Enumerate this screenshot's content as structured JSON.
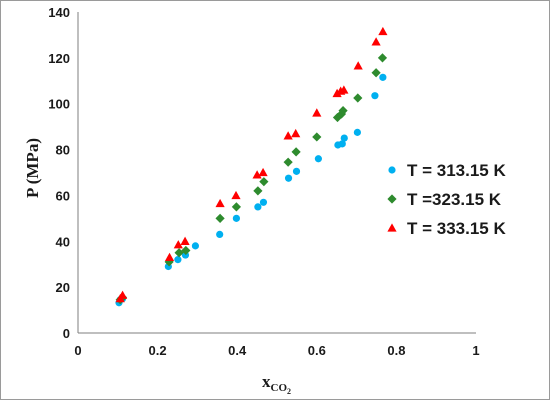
{
  "chart_data": {
    "type": "scatter",
    "title": "",
    "ylabel": "P (MPa)",
    "xlabel": {
      "main": "x",
      "sub": "CO",
      "subsub": "2"
    },
    "xlim": [
      0,
      1
    ],
    "ylim": [
      0,
      140
    ],
    "x_ticks": [
      "0",
      "0.2",
      "0.4",
      "0.6",
      "0.8",
      "1"
    ],
    "y_ticks": [
      "0",
      "20",
      "40",
      "60",
      "80",
      "100",
      "120",
      "140"
    ],
    "grid": false,
    "legend_position": "right",
    "series": [
      {
        "name": "T = 313.15 K",
        "marker": "circle",
        "color": "#00b0f0",
        "points": [
          [
            0.103,
            13.2
          ],
          [
            0.106,
            14.5
          ],
          [
            0.112,
            15.0
          ],
          [
            0.227,
            29.0
          ],
          [
            0.251,
            32.0
          ],
          [
            0.27,
            34.0
          ],
          [
            0.295,
            38.0
          ],
          [
            0.356,
            43.0
          ],
          [
            0.398,
            50.0
          ],
          [
            0.452,
            55.0
          ],
          [
            0.466,
            57.0
          ],
          [
            0.529,
            67.5
          ],
          [
            0.549,
            70.5
          ],
          [
            0.604,
            76.0
          ],
          [
            0.653,
            82.0
          ],
          [
            0.664,
            82.5
          ],
          [
            0.669,
            85.0
          ],
          [
            0.702,
            87.5
          ],
          [
            0.746,
            103.5
          ],
          [
            0.766,
            111.5
          ]
        ]
      },
      {
        "name": "T =323.15 K",
        "marker": "diamond",
        "color": "#2e8b2e",
        "points": [
          [
            0.106,
            14.5
          ],
          [
            0.112,
            15.5
          ],
          [
            0.229,
            31.0
          ],
          [
            0.254,
            35.0
          ],
          [
            0.271,
            36.0
          ],
          [
            0.357,
            50.0
          ],
          [
            0.398,
            55.0
          ],
          [
            0.452,
            62.0
          ],
          [
            0.467,
            66.0
          ],
          [
            0.528,
            74.5
          ],
          [
            0.548,
            79.0
          ],
          [
            0.6,
            85.5
          ],
          [
            0.652,
            94.0
          ],
          [
            0.662,
            95.5
          ],
          [
            0.666,
            97.0
          ],
          [
            0.703,
            102.5
          ],
          [
            0.749,
            113.5
          ],
          [
            0.765,
            120.0
          ]
        ]
      },
      {
        "name": "T = 333.15 K",
        "marker": "triangle",
        "color": "#ff0000",
        "points": [
          [
            0.106,
            15.0
          ],
          [
            0.112,
            16.5
          ],
          [
            0.23,
            33.0
          ],
          [
            0.252,
            38.5
          ],
          [
            0.269,
            40.0
          ],
          [
            0.357,
            56.5
          ],
          [
            0.397,
            60.0
          ],
          [
            0.45,
            69.0
          ],
          [
            0.465,
            70.0
          ],
          [
            0.528,
            86.0
          ],
          [
            0.547,
            87.0
          ],
          [
            0.6,
            96.0
          ],
          [
            0.651,
            104.5
          ],
          [
            0.66,
            105.5
          ],
          [
            0.668,
            106.0
          ],
          [
            0.704,
            116.5
          ],
          [
            0.749,
            127.0
          ],
          [
            0.766,
            131.5
          ]
        ]
      }
    ]
  }
}
